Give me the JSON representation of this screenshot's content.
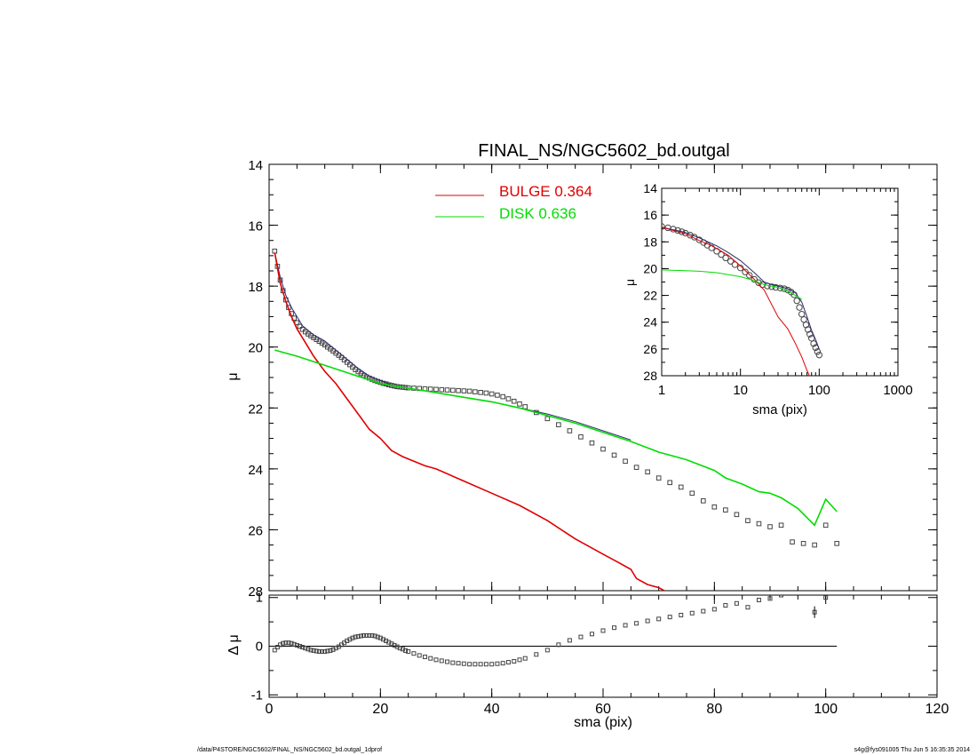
{
  "footer": {
    "left": "/data/P4STORE/NGC5602/FINAL_NS/NGC5602_bd.outgal_1dprof",
    "right": "s4g@fys091005  Thu Jun  5 16:35:35 2014"
  },
  "colors": {
    "bulge": "#e00000",
    "disk": "#00dd00",
    "data": "#444444",
    "model": "#2a2a6a"
  },
  "chart_data": [
    {
      "panel": "main",
      "type": "line",
      "title": "FINAL_NS/NGC5602_bd.outgal",
      "xlabel": "",
      "ylabel": "μ",
      "xlim": [
        0,
        120
      ],
      "ylim": [
        28,
        14
      ],
      "y_inverted": true,
      "xticks": [
        0,
        20,
        40,
        60,
        80,
        100,
        120
      ],
      "xtick_labels_shown": false,
      "yticks": [
        14,
        16,
        18,
        20,
        22,
        24,
        26,
        28
      ],
      "legend": [
        {
          "label": "BULGE  0.364",
          "series": "bulge"
        },
        {
          "label": "DISK  0.636",
          "series": "disk"
        }
      ],
      "legend_position": "top-center",
      "series": [
        {
          "key": "bulge",
          "x": [
            1,
            2,
            3,
            4,
            5,
            6,
            7,
            8,
            10,
            12,
            14,
            16,
            18,
            20,
            22,
            24,
            26,
            28,
            30,
            35,
            40,
            45,
            50,
            55,
            60,
            63,
            65,
            66,
            68,
            70,
            71
          ],
          "y": [
            16.9,
            17.9,
            18.5,
            19.0,
            19.4,
            19.7,
            20.0,
            20.3,
            20.8,
            21.2,
            21.7,
            22.2,
            22.7,
            23.0,
            23.4,
            23.6,
            23.75,
            23.9,
            24.0,
            24.4,
            24.8,
            25.2,
            25.7,
            26.3,
            26.8,
            27.1,
            27.3,
            27.6,
            27.8,
            27.9,
            28.0
          ]
        },
        {
          "key": "disk",
          "x": [
            1,
            5,
            10,
            15,
            20,
            25,
            30,
            35,
            40,
            45,
            50,
            55,
            60,
            65,
            70,
            75,
            80,
            82,
            85,
            88,
            90,
            92,
            95,
            98,
            100,
            102
          ],
          "y": [
            20.1,
            20.3,
            20.6,
            20.9,
            21.2,
            21.35,
            21.5,
            21.65,
            21.8,
            22.0,
            22.25,
            22.5,
            22.8,
            23.1,
            23.45,
            23.7,
            24.05,
            24.3,
            24.5,
            24.75,
            24.8,
            24.95,
            25.3,
            25.85,
            25.0,
            25.4
          ]
        },
        {
          "key": "model",
          "x": [
            1,
            2,
            3,
            4,
            5,
            6,
            8,
            10,
            12,
            14,
            16,
            18,
            20,
            22,
            25,
            30,
            35,
            40,
            45,
            50,
            55,
            60,
            65
          ],
          "y": [
            16.9,
            17.7,
            18.3,
            18.7,
            19.0,
            19.3,
            19.6,
            19.8,
            20.1,
            20.4,
            20.7,
            20.95,
            21.1,
            21.25,
            21.35,
            21.5,
            21.65,
            21.8,
            22.0,
            22.2,
            22.45,
            22.75,
            23.05
          ]
        },
        {
          "key": "data",
          "marker": "square",
          "x": [
            1,
            1.5,
            2,
            2.5,
            3,
            3.5,
            4,
            4.5,
            5,
            5.5,
            6,
            6.5,
            7,
            7.5,
            8,
            8.5,
            9,
            9.5,
            10,
            10.5,
            11,
            11.5,
            12,
            12.5,
            13,
            13.5,
            14,
            14.5,
            15,
            15.5,
            16,
            16.5,
            17,
            17.5,
            18,
            18.5,
            19,
            19.5,
            20,
            20.5,
            21,
            21.5,
            22,
            22.5,
            23,
            23.5,
            24,
            24.5,
            25,
            26,
            27,
            28,
            29,
            30,
            31,
            32,
            33,
            34,
            35,
            36,
            37,
            38,
            39,
            40,
            41,
            42,
            43,
            44,
            45,
            46,
            48,
            50,
            52,
            54,
            56,
            58,
            60,
            62,
            64,
            66,
            68,
            70,
            72,
            74,
            76,
            78,
            80,
            82,
            84,
            86,
            88,
            90,
            92,
            94,
            96,
            98,
            100,
            102
          ],
          "y": [
            16.85,
            17.35,
            17.8,
            18.15,
            18.45,
            18.7,
            18.9,
            19.05,
            19.2,
            19.32,
            19.42,
            19.5,
            19.57,
            19.63,
            19.69,
            19.75,
            19.81,
            19.87,
            19.93,
            20.0,
            20.06,
            20.13,
            20.2,
            20.27,
            20.34,
            20.42,
            20.5,
            20.58,
            20.66,
            20.74,
            20.81,
            20.87,
            20.93,
            20.98,
            21.02,
            21.06,
            21.1,
            21.13,
            21.16,
            21.19,
            21.21,
            21.24,
            21.26,
            21.28,
            21.3,
            21.31,
            21.32,
            21.33,
            21.34,
            21.35,
            21.36,
            21.37,
            21.38,
            21.39,
            21.4,
            21.41,
            21.42,
            21.43,
            21.44,
            21.45,
            21.47,
            21.49,
            21.51,
            21.54,
            21.58,
            21.63,
            21.7,
            21.78,
            21.87,
            21.96,
            22.15,
            22.35,
            22.55,
            22.75,
            22.95,
            23.15,
            23.35,
            23.55,
            23.75,
            23.95,
            24.1,
            24.3,
            24.45,
            24.6,
            24.8,
            25.05,
            25.25,
            25.35,
            25.5,
            25.7,
            25.8,
            25.9,
            25.85,
            26.4,
            26.45,
            26.5,
            25.85,
            26.45
          ]
        }
      ]
    },
    {
      "panel": "inset",
      "type": "line",
      "xlabel": "sma (pix)",
      "ylabel": "μ",
      "xscale": "log",
      "xlim": [
        1,
        1000
      ],
      "ylim": [
        28,
        14
      ],
      "y_inverted": true,
      "xticks": [
        1,
        10,
        100,
        1000
      ],
      "yticks": [
        14,
        16,
        18,
        20,
        22,
        24,
        26,
        28
      ],
      "series": [
        {
          "key": "bulge",
          "x": [
            1,
            1.5,
            2,
            3,
            4,
            5,
            7,
            10,
            15,
            20,
            30,
            40,
            50,
            60,
            70,
            75
          ],
          "y": [
            16.9,
            17.2,
            17.4,
            17.9,
            18.2,
            18.5,
            19.0,
            19.8,
            20.8,
            21.6,
            23.6,
            24.5,
            25.6,
            26.6,
            27.6,
            28.0
          ]
        },
        {
          "key": "disk",
          "x": [
            1,
            2,
            3,
            5,
            10,
            15,
            20,
            30,
            40,
            50,
            60
          ],
          "y": [
            20.1,
            20.15,
            20.2,
            20.3,
            20.6,
            20.9,
            21.2,
            21.4,
            21.7,
            22.0,
            22.3
          ]
        },
        {
          "key": "model",
          "x": [
            1,
            2,
            3,
            5,
            7,
            10,
            15,
            20,
            25,
            30,
            40,
            50,
            60,
            70,
            80,
            90,
            100
          ],
          "y": [
            16.9,
            17.3,
            17.7,
            18.3,
            18.8,
            19.4,
            20.3,
            21.0,
            21.2,
            21.3,
            21.5,
            21.8,
            22.5,
            23.6,
            24.6,
            25.3,
            26.0
          ]
        },
        {
          "key": "data",
          "marker": "circle",
          "x": [
            1,
            1.2,
            1.4,
            1.6,
            1.8,
            2,
            2.3,
            2.6,
            3,
            3.4,
            3.8,
            4.3,
            5,
            5.7,
            6.5,
            7.5,
            8.5,
            10,
            11.5,
            13,
            15,
            17,
            19,
            22,
            25,
            28,
            32,
            36,
            40,
            44,
            48,
            52,
            56,
            60,
            64,
            68,
            72,
            76,
            80,
            85,
            90,
            95,
            100
          ],
          "y": [
            16.85,
            16.95,
            17.05,
            17.15,
            17.25,
            17.35,
            17.5,
            17.65,
            17.85,
            18.05,
            18.25,
            18.45,
            18.7,
            18.95,
            19.2,
            19.45,
            19.7,
            19.95,
            20.25,
            20.5,
            20.8,
            21.05,
            21.2,
            21.3,
            21.35,
            21.4,
            21.45,
            21.5,
            21.6,
            21.75,
            21.95,
            22.4,
            22.9,
            23.4,
            23.8,
            24.2,
            24.55,
            24.9,
            25.2,
            25.6,
            25.9,
            26.2,
            26.45
          ]
        }
      ]
    },
    {
      "panel": "residual",
      "type": "scatter",
      "xlabel": "sma (pix)",
      "ylabel": "Δ μ",
      "xlim": [
        0,
        120
      ],
      "ylim": [
        -1.05,
        1.05
      ],
      "xticks": [
        0,
        20,
        40,
        60,
        80,
        100,
        120
      ],
      "yticks": [
        -1,
        0,
        1
      ],
      "zero_line": {
        "x": [
          0,
          102
        ],
        "y": 0
      },
      "series": [
        {
          "key": "data",
          "marker": "square",
          "x": [
            1,
            1.5,
            2,
            2.5,
            3,
            3.5,
            4,
            4.5,
            5,
            5.5,
            6,
            6.5,
            7,
            7.5,
            8,
            8.5,
            9,
            9.5,
            10,
            10.5,
            11,
            11.5,
            12,
            12.5,
            13,
            13.5,
            14,
            14.5,
            15,
            15.5,
            16,
            16.5,
            17,
            17.5,
            18,
            18.5,
            19,
            19.5,
            20,
            20.5,
            21,
            21.5,
            22,
            22.5,
            23,
            23.5,
            24,
            24.5,
            25,
            26,
            27,
            28,
            29,
            30,
            31,
            32,
            33,
            34,
            35,
            36,
            37,
            38,
            39,
            40,
            41,
            42,
            43,
            44,
            45,
            46,
            48,
            50,
            52,
            54,
            56,
            58,
            60,
            62,
            64,
            66,
            68,
            70,
            72,
            74,
            76,
            78,
            80,
            82,
            84,
            86,
            88,
            90,
            92,
            94,
            96,
            98,
            100,
            102
          ],
          "y": [
            -0.08,
            -0.02,
            0.03,
            0.06,
            0.07,
            0.07,
            0.06,
            0.04,
            0.02,
            0.0,
            -0.02,
            -0.04,
            -0.06,
            -0.08,
            -0.09,
            -0.1,
            -0.11,
            -0.11,
            -0.11,
            -0.1,
            -0.09,
            -0.07,
            -0.04,
            -0.01,
            0.03,
            0.07,
            0.11,
            0.14,
            0.17,
            0.19,
            0.2,
            0.21,
            0.22,
            0.22,
            0.22,
            0.22,
            0.21,
            0.19,
            0.17,
            0.14,
            0.11,
            0.08,
            0.05,
            0.02,
            -0.01,
            -0.04,
            -0.06,
            -0.09,
            -0.11,
            -0.15,
            -0.19,
            -0.22,
            -0.25,
            -0.28,
            -0.3,
            -0.32,
            -0.34,
            -0.35,
            -0.36,
            -0.37,
            -0.37,
            -0.37,
            -0.37,
            -0.37,
            -0.36,
            -0.35,
            -0.33,
            -0.31,
            -0.28,
            -0.25,
            -0.17,
            -0.08,
            0.03,
            0.12,
            0.19,
            0.25,
            0.32,
            0.38,
            0.43,
            0.47,
            0.52,
            0.56,
            0.6,
            0.64,
            0.68,
            0.72,
            0.76,
            0.84,
            0.88,
            0.8,
            0.95,
            0.98,
            1.05,
            1.1,
            1.15,
            0.7,
            1.0,
            1.15
          ],
          "errorbars": [
            {
              "x": 98,
              "y": 0.7,
              "err": 0.12
            }
          ]
        }
      ]
    }
  ]
}
